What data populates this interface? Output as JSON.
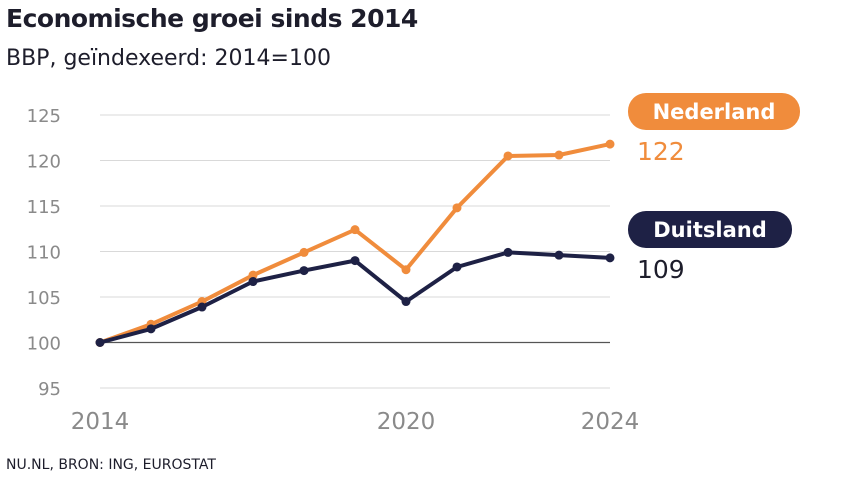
{
  "header": {
    "title": "Economische groei sinds 2014",
    "subtitle": "BBP, geïndexeerd: 2014=100"
  },
  "footer": {
    "source": "NU.NL, BRON: ING, EUROSTAT"
  },
  "chart_data": {
    "type": "line",
    "title": "Economische groei sinds 2014",
    "subtitle": "BBP, geïndexeerd: 2014=100",
    "xlabel": "",
    "ylabel": "",
    "x": [
      2014,
      2015,
      2016,
      2017,
      2018,
      2019,
      2020,
      2021,
      2022,
      2023,
      2024
    ],
    "x_ticks": [
      "2014",
      "2020",
      "2024"
    ],
    "y_ticks": [
      95,
      100,
      105,
      110,
      115,
      120,
      125
    ],
    "ylim": [
      95,
      125
    ],
    "grid": true,
    "legend": "end-of-line labels",
    "series": [
      {
        "name": "Nederland",
        "color": "#f08c3c",
        "end_label": "122",
        "values": [
          100,
          102.0,
          104.5,
          107.4,
          109.9,
          112.4,
          108.0,
          114.8,
          120.5,
          120.6,
          121.8
        ]
      },
      {
        "name": "Duitsland",
        "color": "#1e2145",
        "end_label": "109",
        "values": [
          100,
          101.5,
          103.9,
          106.7,
          107.9,
          109.0,
          104.5,
          108.3,
          109.9,
          109.6,
          109.3
        ]
      }
    ]
  }
}
